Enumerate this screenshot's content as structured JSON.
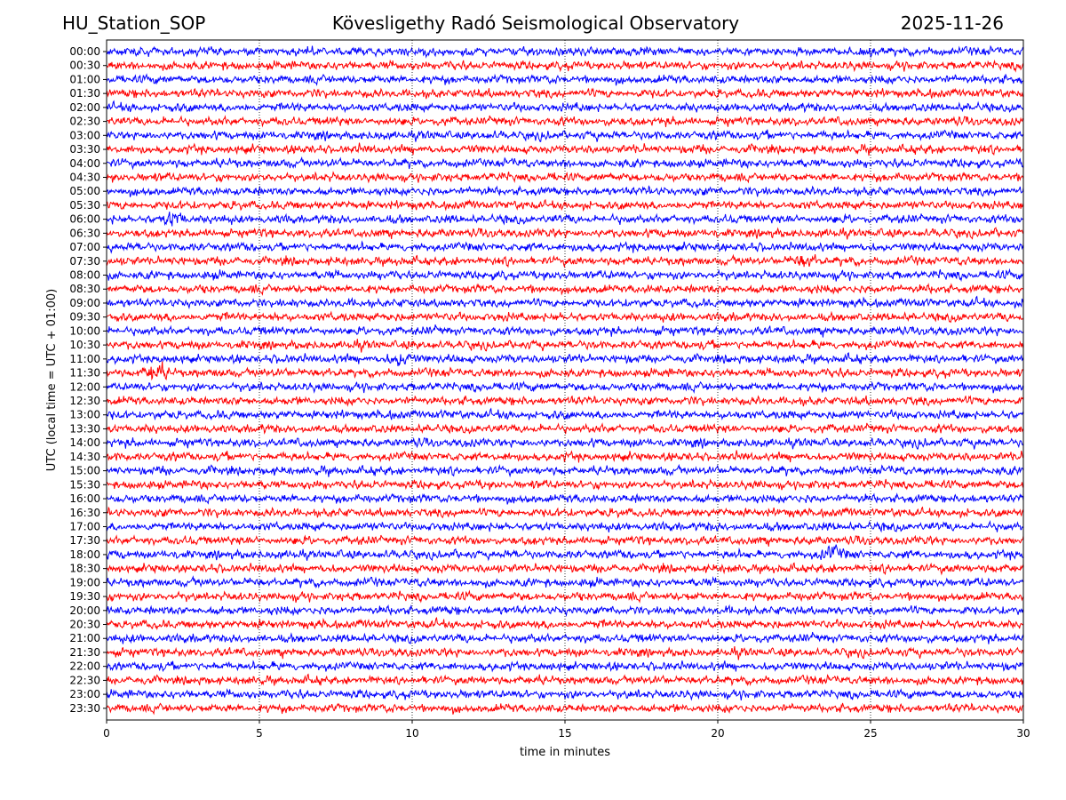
{
  "header": {
    "station": "HU_Station_SOP",
    "title": "Kövesligethy Radó Seismological Observatory",
    "date": "2025-11-26"
  },
  "chart_data": {
    "type": "line",
    "description_kind": "helicorder",
    "title": "Kövesligethy Radó Seismological Observatory",
    "xlabel": "time in minutes",
    "ylabel": "UTC (local time = UTC + 01:00)",
    "xlim": [
      0,
      30
    ],
    "xticks": [
      0,
      5,
      10,
      15,
      20,
      25,
      30
    ],
    "grid_x": true,
    "row_labels": [
      "00:00",
      "00:30",
      "01:00",
      "01:30",
      "02:00",
      "02:30",
      "03:00",
      "03:30",
      "04:00",
      "04:30",
      "05:00",
      "05:30",
      "06:00",
      "06:30",
      "07:00",
      "07:30",
      "08:00",
      "08:30",
      "09:00",
      "09:30",
      "10:00",
      "10:30",
      "11:00",
      "11:30",
      "12:00",
      "12:30",
      "13:00",
      "13:30",
      "14:00",
      "14:30",
      "15:00",
      "15:30",
      "16:00",
      "16:30",
      "17:00",
      "17:30",
      "18:00",
      "18:30",
      "19:00",
      "19:30",
      "20:00",
      "20:30",
      "21:00",
      "21:30",
      "22:00",
      "22:30",
      "23:00",
      "23:30"
    ],
    "row_colors": [
      "#0000ff",
      "#ff0000"
    ],
    "events": [
      {
        "row": "11:30",
        "minute": 1.6,
        "amplitude": 2.0
      },
      {
        "row": "18:00",
        "minute": 23.7,
        "amplitude": 1.6
      },
      {
        "row": "07:30",
        "minute": 22.9,
        "amplitude": 1.4
      },
      {
        "row": "11:00",
        "minute": 9.6,
        "amplitude": 1.3
      },
      {
        "row": "06:00",
        "minute": 2.2,
        "amplitude": 1.3
      }
    ]
  }
}
